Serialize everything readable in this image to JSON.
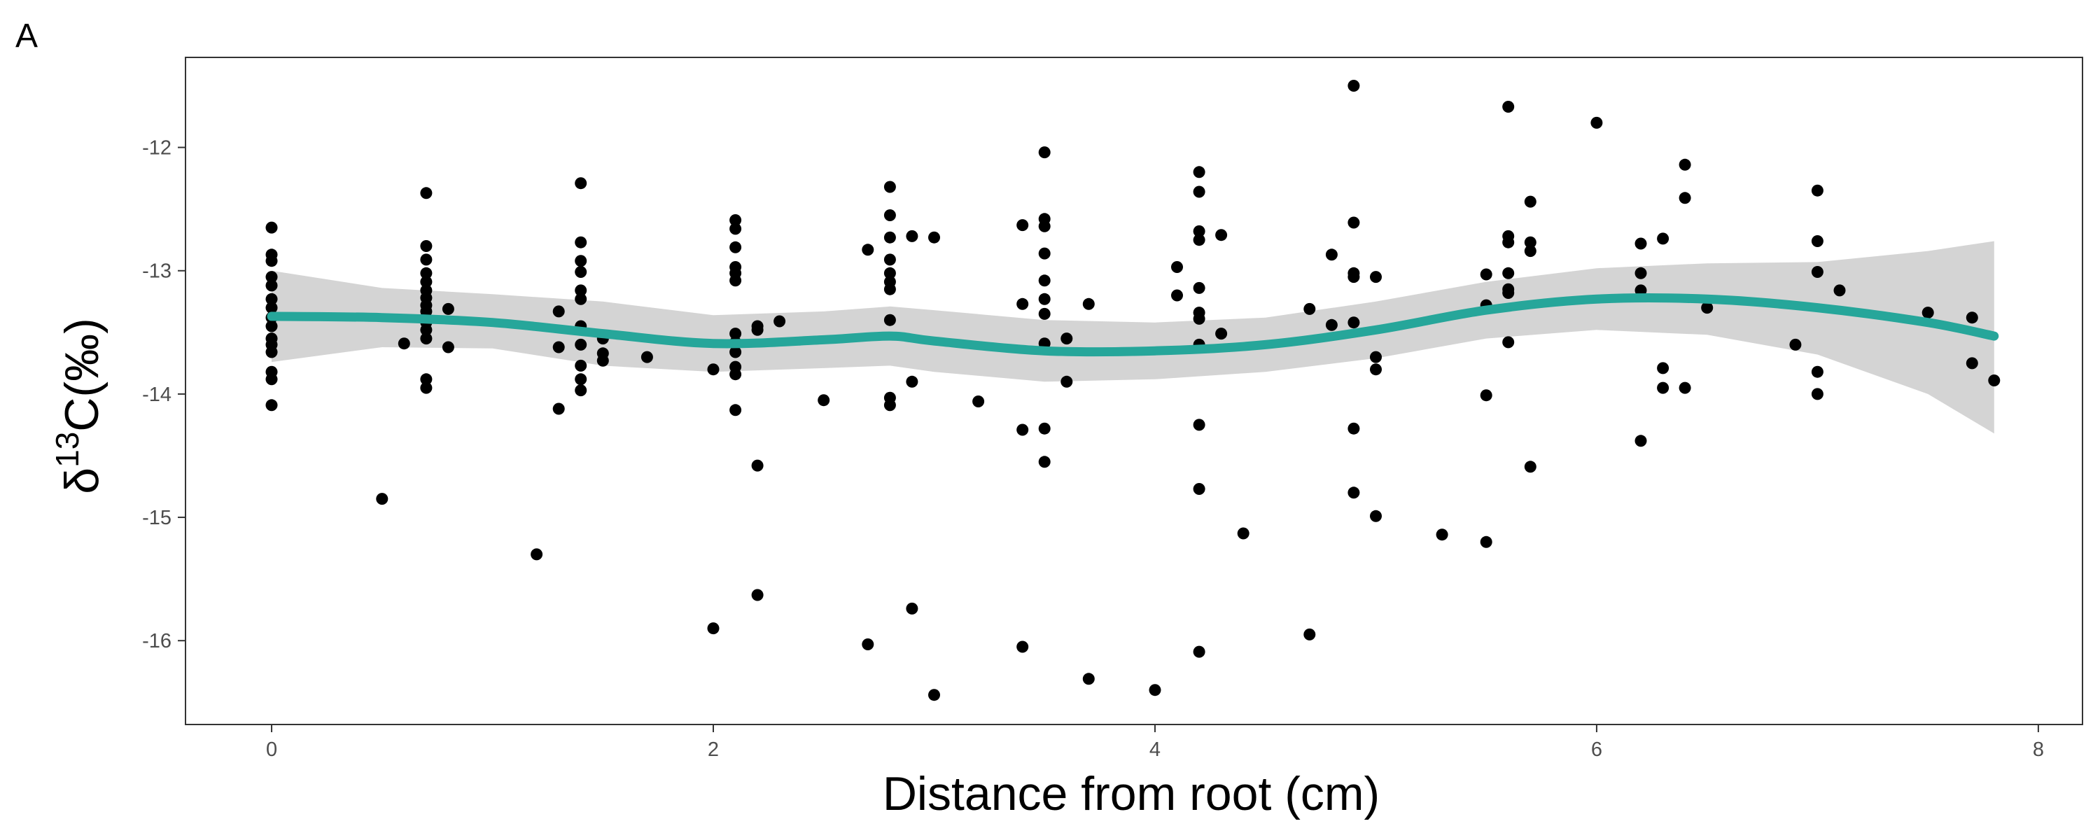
{
  "panel_label": "A",
  "colors": {
    "points": "#000000",
    "smooth_line": "#26a69a",
    "confidence_band": "#cccccc",
    "panel_border": "#333333",
    "tick_text": "#4d4d4d"
  },
  "chart_data": {
    "type": "scatter",
    "title": "",
    "xlabel": "Distance from root (cm)",
    "ylabel": {
      "prefix": "δ",
      "superscript": "13",
      "main": "C(‰)"
    },
    "xlim": [
      -0.39,
      8.2
    ],
    "ylim": [
      -16.68,
      -11.27
    ],
    "x_ticks": [
      0,
      2,
      4,
      6,
      8
    ],
    "x_tick_labels": [
      "0",
      "2",
      "4",
      "6",
      "8"
    ],
    "y_ticks": [
      -12,
      -13,
      -14,
      -15,
      -16
    ],
    "y_tick_labels": [
      "-12",
      "-13",
      "-14",
      "-15",
      "-16"
    ],
    "grid": false,
    "legend": "none",
    "points": [
      [
        0,
        -12.65
      ],
      [
        0,
        -12.87
      ],
      [
        0,
        -12.92
      ],
      [
        0,
        -13.05
      ],
      [
        0,
        -13.12
      ],
      [
        0,
        -13.23
      ],
      [
        0,
        -13.3
      ],
      [
        0,
        -13.38
      ],
      [
        0,
        -13.45
      ],
      [
        0,
        -13.55
      ],
      [
        0,
        -13.6
      ],
      [
        0,
        -13.66
      ],
      [
        0,
        -13.82
      ],
      [
        0,
        -13.88
      ],
      [
        0,
        -14.09
      ],
      [
        0.5,
        -14.85
      ],
      [
        0.6,
        -13.59
      ],
      [
        0.7,
        -12.37
      ],
      [
        0.7,
        -12.8
      ],
      [
        0.7,
        -12.91
      ],
      [
        0.7,
        -13.02
      ],
      [
        0.7,
        -13.09
      ],
      [
        0.7,
        -13.16
      ],
      [
        0.7,
        -13.22
      ],
      [
        0.7,
        -13.28
      ],
      [
        0.7,
        -13.33
      ],
      [
        0.7,
        -13.42
      ],
      [
        0.7,
        -13.48
      ],
      [
        0.7,
        -13.55
      ],
      [
        0.7,
        -13.88
      ],
      [
        0.7,
        -13.95
      ],
      [
        0.8,
        -13.31
      ],
      [
        0.8,
        -13.62
      ],
      [
        1.2,
        -15.3
      ],
      [
        1.3,
        -13.33
      ],
      [
        1.3,
        -13.62
      ],
      [
        1.3,
        -14.12
      ],
      [
        1.4,
        -12.29
      ],
      [
        1.4,
        -12.77
      ],
      [
        1.4,
        -12.92
      ],
      [
        1.4,
        -13.01
      ],
      [
        1.4,
        -13.16
      ],
      [
        1.4,
        -13.23
      ],
      [
        1.4,
        -13.45
      ],
      [
        1.4,
        -13.6
      ],
      [
        1.4,
        -13.77
      ],
      [
        1.4,
        -13.88
      ],
      [
        1.4,
        -13.97
      ],
      [
        1.5,
        -13.55
      ],
      [
        1.5,
        -13.67
      ],
      [
        1.5,
        -13.73
      ],
      [
        1.7,
        -13.7
      ],
      [
        2.0,
        -13.8
      ],
      [
        2.0,
        -15.9
      ],
      [
        2.1,
        -12.59
      ],
      [
        2.1,
        -12.66
      ],
      [
        2.1,
        -12.81
      ],
      [
        2.1,
        -12.97
      ],
      [
        2.1,
        -13.02
      ],
      [
        2.1,
        -13.08
      ],
      [
        2.1,
        -13.51
      ],
      [
        2.1,
        -13.58
      ],
      [
        2.1,
        -13.66
      ],
      [
        2.1,
        -13.78
      ],
      [
        2.1,
        -13.84
      ],
      [
        2.1,
        -14.13
      ],
      [
        2.2,
        -13.45
      ],
      [
        2.2,
        -13.48
      ],
      [
        2.2,
        -14.58
      ],
      [
        2.2,
        -15.63
      ],
      [
        2.3,
        -13.41
      ],
      [
        2.5,
        -14.05
      ],
      [
        2.7,
        -12.83
      ],
      [
        2.7,
        -16.03
      ],
      [
        2.8,
        -12.32
      ],
      [
        2.8,
        -12.55
      ],
      [
        2.8,
        -12.73
      ],
      [
        2.8,
        -12.91
      ],
      [
        2.8,
        -13.02
      ],
      [
        2.8,
        -13.09
      ],
      [
        2.8,
        -13.15
      ],
      [
        2.8,
        -13.4
      ],
      [
        2.8,
        -14.03
      ],
      [
        2.8,
        -14.09
      ],
      [
        2.9,
        -12.72
      ],
      [
        2.9,
        -13.9
      ],
      [
        2.9,
        -15.74
      ],
      [
        3.0,
        -12.73
      ],
      [
        3.0,
        -16.44
      ],
      [
        3.2,
        -14.06
      ],
      [
        3.4,
        -12.63
      ],
      [
        3.4,
        -13.27
      ],
      [
        3.4,
        -14.29
      ],
      [
        3.4,
        -16.05
      ],
      [
        3.5,
        -12.04
      ],
      [
        3.5,
        -12.58
      ],
      [
        3.5,
        -12.64
      ],
      [
        3.5,
        -12.86
      ],
      [
        3.5,
        -13.08
      ],
      [
        3.5,
        -13.23
      ],
      [
        3.5,
        -13.35
      ],
      [
        3.5,
        -13.59
      ],
      [
        3.5,
        -14.28
      ],
      [
        3.5,
        -14.55
      ],
      [
        3.6,
        -13.55
      ],
      [
        3.6,
        -13.9
      ],
      [
        3.7,
        -13.27
      ],
      [
        3.7,
        -16.31
      ],
      [
        4.0,
        -16.4
      ],
      [
        4.1,
        -12.97
      ],
      [
        4.1,
        -13.2
      ],
      [
        4.2,
        -12.2
      ],
      [
        4.2,
        -12.36
      ],
      [
        4.2,
        -12.68
      ],
      [
        4.2,
        -12.75
      ],
      [
        4.2,
        -13.14
      ],
      [
        4.2,
        -13.34
      ],
      [
        4.2,
        -13.39
      ],
      [
        4.2,
        -13.6
      ],
      [
        4.2,
        -14.25
      ],
      [
        4.2,
        -14.77
      ],
      [
        4.2,
        -16.09
      ],
      [
        4.3,
        -12.71
      ],
      [
        4.3,
        -13.51
      ],
      [
        4.4,
        -15.13
      ],
      [
        4.7,
        -13.31
      ],
      [
        4.7,
        -15.95
      ],
      [
        4.8,
        -12.87
      ],
      [
        4.8,
        -13.44
      ],
      [
        4.9,
        -11.5
      ],
      [
        4.9,
        -12.61
      ],
      [
        4.9,
        -13.02
      ],
      [
        4.9,
        -13.05
      ],
      [
        4.9,
        -13.42
      ],
      [
        4.9,
        -14.28
      ],
      [
        4.9,
        -14.8
      ],
      [
        5.0,
        -13.05
      ],
      [
        5.0,
        -13.7
      ],
      [
        5.0,
        -13.8
      ],
      [
        5.0,
        -14.99
      ],
      [
        5.3,
        -15.14
      ],
      [
        5.5,
        -13.03
      ],
      [
        5.5,
        -13.28
      ],
      [
        5.5,
        -14.01
      ],
      [
        5.5,
        -15.2
      ],
      [
        5.6,
        -11.67
      ],
      [
        5.6,
        -12.72
      ],
      [
        5.6,
        -12.77
      ],
      [
        5.6,
        -13.02
      ],
      [
        5.6,
        -13.15
      ],
      [
        5.6,
        -13.18
      ],
      [
        5.6,
        -13.58
      ],
      [
        5.7,
        -12.44
      ],
      [
        5.7,
        -12.77
      ],
      [
        5.7,
        -12.84
      ],
      [
        5.7,
        -14.59
      ],
      [
        6.0,
        -11.8
      ],
      [
        6.2,
        -12.78
      ],
      [
        6.2,
        -13.02
      ],
      [
        6.2,
        -13.16
      ],
      [
        6.2,
        -14.38
      ],
      [
        6.3,
        -12.74
      ],
      [
        6.3,
        -13.79
      ],
      [
        6.3,
        -13.95
      ],
      [
        6.4,
        -12.14
      ],
      [
        6.4,
        -12.41
      ],
      [
        6.4,
        -13.95
      ],
      [
        6.5,
        -13.3
      ],
      [
        6.9,
        -13.6
      ],
      [
        7.0,
        -12.35
      ],
      [
        7.0,
        -12.76
      ],
      [
        7.0,
        -13.01
      ],
      [
        7.0,
        -13.82
      ],
      [
        7.0,
        -14.0
      ],
      [
        7.1,
        -13.16
      ],
      [
        7.5,
        -13.34
      ],
      [
        7.7,
        -13.38
      ],
      [
        7.7,
        -13.75
      ],
      [
        7.8,
        -13.89
      ]
    ],
    "smooth_line": {
      "x": [
        0,
        0.5,
        1.0,
        1.5,
        2.0,
        2.5,
        2.8,
        3.0,
        3.5,
        4.0,
        4.5,
        5.0,
        5.5,
        6.0,
        6.5,
        7.0,
        7.5,
        7.8
      ],
      "y": [
        -13.37,
        -13.38,
        -13.42,
        -13.51,
        -13.59,
        -13.56,
        -13.53,
        -13.57,
        -13.65,
        -13.65,
        -13.6,
        -13.48,
        -13.32,
        -13.23,
        -13.23,
        -13.3,
        -13.42,
        -13.53
      ]
    },
    "confidence_band": {
      "x": [
        0,
        0.5,
        1.0,
        1.5,
        2.0,
        2.5,
        2.8,
        3.0,
        3.5,
        4.0,
        4.5,
        5.0,
        5.5,
        6.0,
        6.5,
        7.0,
        7.5,
        7.8
      ],
      "lower": [
        -13.74,
        -13.62,
        -13.63,
        -13.77,
        -13.82,
        -13.79,
        -13.77,
        -13.82,
        -13.9,
        -13.88,
        -13.82,
        -13.71,
        -13.55,
        -13.48,
        -13.52,
        -13.68,
        -14.0,
        -14.32
      ],
      "upper": [
        -13.0,
        -13.14,
        -13.19,
        -13.25,
        -13.36,
        -13.33,
        -13.29,
        -13.32,
        -13.4,
        -13.42,
        -13.38,
        -13.25,
        -13.09,
        -12.98,
        -12.94,
        -12.93,
        -12.84,
        -12.76
      ]
    }
  }
}
